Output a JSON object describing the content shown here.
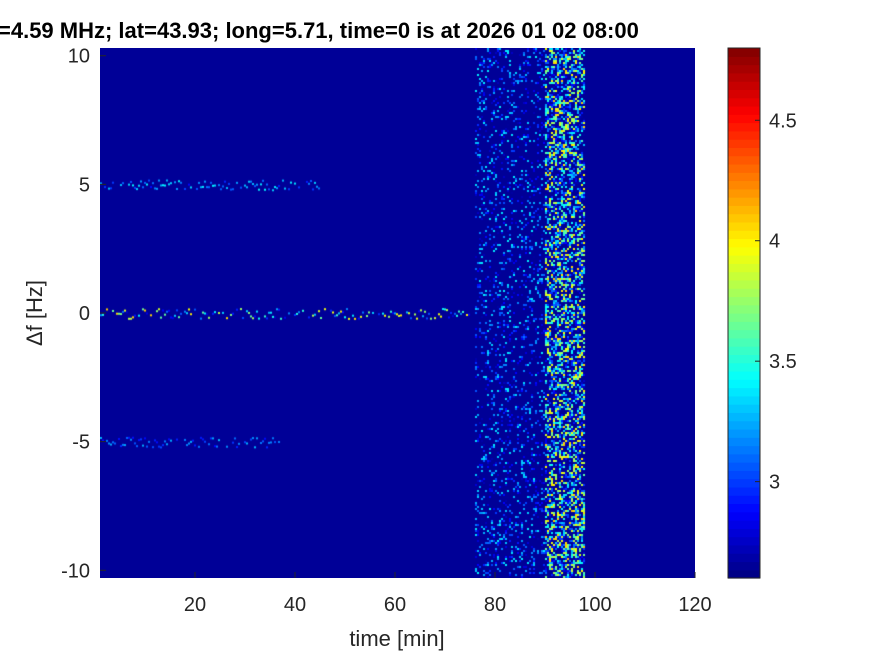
{
  "chart_data": {
    "type": "heatmap",
    "title": "=4.59 MHz;  lat=43.93; long=5.71, time=0 is at 2026 01 02 08:00",
    "xlabel": "time [min]",
    "ylabel": "Δf [Hz]",
    "xlim": [
      1,
      120
    ],
    "ylim": [
      -10.3,
      10.3
    ],
    "x_ticks": [
      20,
      40,
      60,
      80,
      100,
      120
    ],
    "y_ticks": [
      -10,
      -5,
      0,
      5,
      10
    ],
    "grid": false,
    "colormap": "jet",
    "color_range": [
      2.6,
      4.8
    ],
    "colorbar_ticks": [
      3,
      3.5,
      4,
      4.5
    ],
    "background_value": 2.65,
    "features": [
      {
        "kind": "horizontal-line",
        "y": 5.0,
        "x_range": [
          1,
          45
        ],
        "mean": 3.05,
        "peak": 3.6
      },
      {
        "kind": "horizontal-line",
        "y": 0.0,
        "x_range": [
          1,
          75
        ],
        "mean": 3.15,
        "peak": 4.5
      },
      {
        "kind": "horizontal-line",
        "y": -5.0,
        "x_range": [
          1,
          37
        ],
        "mean": 3.0,
        "peak": 3.4
      },
      {
        "kind": "noise-band",
        "x_range": [
          76,
          90
        ],
        "mean": 2.85,
        "peak": 3.4
      },
      {
        "kind": "noise-band",
        "x_range": [
          90,
          98
        ],
        "mean": 3.2,
        "peak": 4.1
      }
    ]
  }
}
